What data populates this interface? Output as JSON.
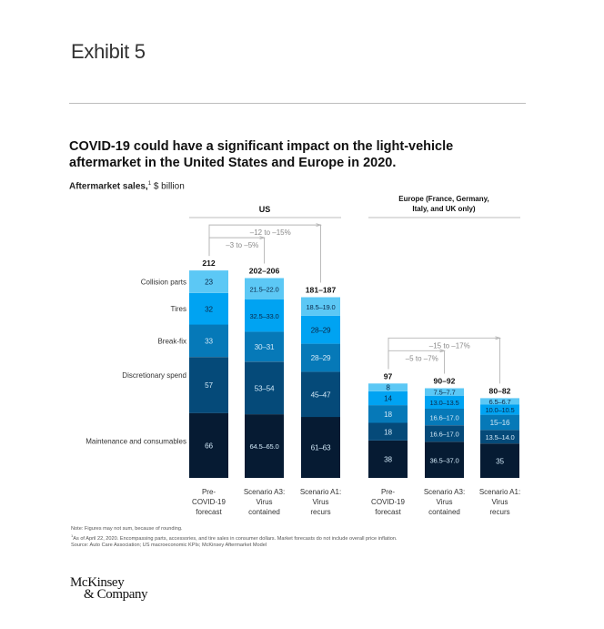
{
  "exhibit_label": "Exhibit 5",
  "headline": "COVID-19 could have a significant impact on the light-vehicle aftermarket in the United States and Europe in 2020.",
  "subtitle": {
    "bold": "Aftermarket sales,",
    "footnote_mark": "1",
    "unit": " $ billion"
  },
  "colors": {
    "collision_parts": "#5CC8F5",
    "tires": "#00A3F2",
    "break_fix": "#0679B8",
    "discretionary_spend": "#054A79",
    "maintenance_and_consumables": "#061B33",
    "rule": "#bdbdbd",
    "bracket": "#b5b5b5"
  },
  "chart_data": {
    "type": "bar",
    "stacked": true,
    "title": "COVID-19 could have a significant impact on the light-vehicle aftermarket in the United States and Europe in 2020.",
    "ylabel": "Aftermarket sales, $ billion",
    "segment_order_bottom_to_top": [
      "Maintenance and consumables",
      "Discretionary spend",
      "Break-fix",
      "Tires",
      "Collision parts"
    ],
    "legend": [
      "Collision parts",
      "Tires",
      "Break-fix",
      "Discretionary spend",
      "Maintenance and consumables"
    ],
    "groups": [
      {
        "name": "US",
        "bars": [
          {
            "label": [
              "Pre-",
              "COVID-19",
              "forecast"
            ],
            "total_label": "212",
            "segments": [
              {
                "series": "Maintenance and consumables",
                "value": 66,
                "label": "66"
              },
              {
                "series": "Discretionary spend",
                "value": 57,
                "label": "57"
              },
              {
                "series": "Break-fix",
                "value": 33,
                "label": "33"
              },
              {
                "series": "Tires",
                "value": 32,
                "label": "32"
              },
              {
                "series": "Collision parts",
                "value": 23,
                "label": "23"
              }
            ]
          },
          {
            "label": [
              "Scenario A3:",
              "Virus",
              "contained"
            ],
            "total_label": "202–206",
            "segments": [
              {
                "series": "Maintenance and consumables",
                "value": 64.75,
                "label": "64.5–65.0"
              },
              {
                "series": "Discretionary spend",
                "value": 53.5,
                "label": "53–54"
              },
              {
                "series": "Break-fix",
                "value": 30.5,
                "label": "30–31"
              },
              {
                "series": "Tires",
                "value": 32.75,
                "label": "32.5–33.0"
              },
              {
                "series": "Collision parts",
                "value": 21.75,
                "label": "21.5–22.0"
              }
            ]
          },
          {
            "label": [
              "Scenario A1:",
              "Virus",
              "recurs"
            ],
            "total_label": "181–187",
            "segments": [
              {
                "series": "Maintenance and consumables",
                "value": 62,
                "label": "61–63"
              },
              {
                "series": "Discretionary spend",
                "value": 46,
                "label": "45–47"
              },
              {
                "series": "Break-fix",
                "value": 28.5,
                "label": "28–29"
              },
              {
                "series": "Tires",
                "value": 28.5,
                "label": "28–29"
              },
              {
                "series": "Collision parts",
                "value": 18.75,
                "label": "18.5–19.0"
              }
            ]
          }
        ],
        "brackets": [
          {
            "from": 0,
            "to": 1,
            "label": "–3 to –5%"
          },
          {
            "from": 0,
            "to": 2,
            "label": "–12 to –15%"
          }
        ]
      },
      {
        "name": "Europe (France, Germany, Italy, and UK only)",
        "name_lines": [
          "Europe (France, Germany,",
          "Italy, and UK only)"
        ],
        "bars": [
          {
            "label": [
              "Pre-",
              "COVID-19",
              "forecast"
            ],
            "total_label": "97",
            "segments": [
              {
                "series": "Maintenance and consumables",
                "value": 38,
                "label": "38"
              },
              {
                "series": "Discretionary spend",
                "value": 18,
                "label": "18"
              },
              {
                "series": "Break-fix",
                "value": 18,
                "label": "18"
              },
              {
                "series": "Tires",
                "value": 14,
                "label": "14"
              },
              {
                "series": "Collision parts",
                "value": 8,
                "label": "8"
              }
            ]
          },
          {
            "label": [
              "Scenario A3:",
              "Virus",
              "contained"
            ],
            "total_label": "90–92",
            "segments": [
              {
                "series": "Maintenance and consumables",
                "value": 36.75,
                "label": "36.5–37.0"
              },
              {
                "series": "Discretionary spend",
                "value": 16.8,
                "label": "16.6–17.0"
              },
              {
                "series": "Break-fix",
                "value": 16.8,
                "label": "16.6–17.0"
              },
              {
                "series": "Tires",
                "value": 13.25,
                "label": "13.0–13.5"
              },
              {
                "series": "Collision parts",
                "value": 7.6,
                "label": "7.5–7.7"
              }
            ]
          },
          {
            "label": [
              "Scenario A1:",
              "Virus",
              "recurs"
            ],
            "total_label": "80–82",
            "segments": [
              {
                "series": "Maintenance and consumables",
                "value": 35,
                "label": "35"
              },
              {
                "series": "Discretionary spend",
                "value": 13.75,
                "label": "13.5–14.0"
              },
              {
                "series": "Break-fix",
                "value": 15.5,
                "label": "15–16"
              },
              {
                "series": "Tires",
                "value": 10.25,
                "label": "10.0–10.5"
              },
              {
                "series": "Collision parts",
                "value": 6.6,
                "label": "6.5–6.7"
              }
            ]
          }
        ],
        "brackets": [
          {
            "from": 0,
            "to": 1,
            "label": "–5 to –7%"
          },
          {
            "from": 0,
            "to": 2,
            "label": "–15 to –17%"
          }
        ]
      }
    ]
  },
  "notes": [
    "Note: Figures may not sum, because of rounding.",
    "As of April 22, 2020. Encompassing parts, accessories, and tire sales in consumer dollars. Market forecasts do not include overall price inflation.",
    "Source: Auto Care Association; US macroeconomic KPIs; McKinsey Aftermarket Model"
  ],
  "note_footnote_mark": "1",
  "logo": {
    "line1": "McKinsey",
    "line2": "& Company"
  }
}
